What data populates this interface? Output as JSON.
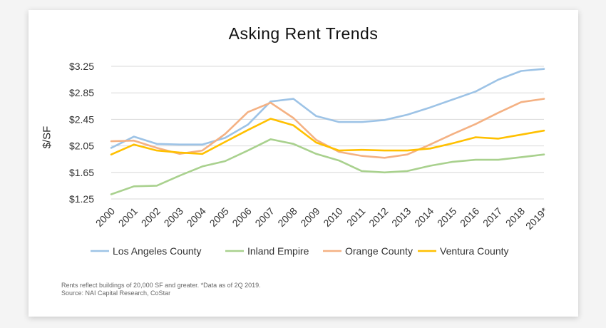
{
  "chart_data": {
    "type": "line",
    "title": "Asking Rent Trends",
    "xlabel": "",
    "ylabel": "$/SF",
    "categories": [
      "2000",
      "2001",
      "2002",
      "2003",
      "2004",
      "2005",
      "2006",
      "2007",
      "2008",
      "2009",
      "2010",
      "2011",
      "2012",
      "2013",
      "2014",
      "2015",
      "2016",
      "2017",
      "2018",
      "2019*"
    ],
    "ylim": [
      1.25,
      3.25
    ],
    "yticks": [
      "$3.25",
      "$2.85",
      "$2.45",
      "$2.05",
      "$1.65",
      "$1.25"
    ],
    "ytick_values": [
      3.25,
      2.85,
      2.45,
      2.05,
      1.65,
      1.25
    ],
    "grid": true,
    "legend_position": "bottom",
    "series": [
      {
        "name": "Los Angeles County",
        "color": "#9dc3e6",
        "values": [
          2.02,
          2.19,
          2.08,
          2.07,
          2.07,
          2.17,
          2.37,
          2.72,
          2.76,
          2.5,
          2.41,
          2.41,
          2.44,
          2.52,
          2.63,
          2.75,
          2.87,
          3.05,
          3.18,
          3.21
        ]
      },
      {
        "name": "Inland Empire",
        "color": "#a9d18e",
        "values": [
          1.32,
          1.44,
          1.45,
          1.6,
          1.74,
          1.82,
          1.98,
          2.15,
          2.08,
          1.93,
          1.83,
          1.67,
          1.65,
          1.67,
          1.75,
          1.81,
          1.84,
          1.84,
          1.88,
          1.92
        ]
      },
      {
        "name": "Orange County",
        "color": "#f4b183",
        "values": [
          2.12,
          2.13,
          2.02,
          1.93,
          1.98,
          2.23,
          2.56,
          2.7,
          2.47,
          2.14,
          1.96,
          1.9,
          1.87,
          1.92,
          2.07,
          2.23,
          2.38,
          2.55,
          2.71,
          2.76
        ]
      },
      {
        "name": "Ventura County",
        "color": "#ffc000",
        "values": [
          1.92,
          2.07,
          1.98,
          1.95,
          1.93,
          2.11,
          2.29,
          2.46,
          2.36,
          2.1,
          1.98,
          1.99,
          1.98,
          1.98,
          2.01,
          2.09,
          2.18,
          2.16,
          2.22,
          2.28
        ]
      }
    ]
  },
  "footnote": {
    "line1": "Rents reflect buildings of 20,000 SF and greater. *Data as of 2Q 2019.",
    "line2": "Source: NAI Capital Research, CoStar"
  }
}
